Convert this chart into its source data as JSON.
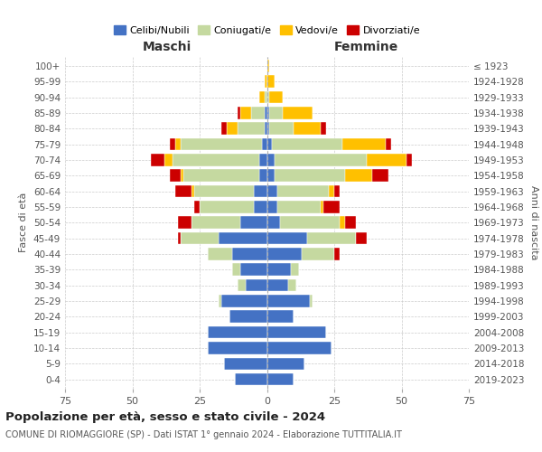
{
  "age_groups": [
    "0-4",
    "5-9",
    "10-14",
    "15-19",
    "20-24",
    "25-29",
    "30-34",
    "35-39",
    "40-44",
    "45-49",
    "50-54",
    "55-59",
    "60-64",
    "65-69",
    "70-74",
    "75-79",
    "80-84",
    "85-89",
    "90-94",
    "95-99",
    "100+"
  ],
  "birth_years": [
    "2019-2023",
    "2014-2018",
    "2009-2013",
    "2004-2008",
    "1999-2003",
    "1994-1998",
    "1989-1993",
    "1984-1988",
    "1979-1983",
    "1974-1978",
    "1969-1973",
    "1964-1968",
    "1959-1963",
    "1954-1958",
    "1949-1953",
    "1944-1948",
    "1939-1943",
    "1934-1938",
    "1929-1933",
    "1924-1928",
    "≤ 1923"
  ],
  "male": {
    "celibi": [
      12,
      16,
      22,
      22,
      14,
      17,
      8,
      10,
      13,
      18,
      10,
      5,
      5,
      3,
      3,
      2,
      1,
      1,
      0,
      0,
      0
    ],
    "coniugati": [
      0,
      0,
      0,
      0,
      0,
      1,
      3,
      3,
      9,
      14,
      18,
      20,
      22,
      28,
      32,
      30,
      10,
      5,
      1,
      0,
      0
    ],
    "vedovi": [
      0,
      0,
      0,
      0,
      0,
      0,
      0,
      0,
      0,
      0,
      0,
      0,
      1,
      1,
      3,
      2,
      4,
      4,
      2,
      1,
      0
    ],
    "divorziati": [
      0,
      0,
      0,
      0,
      0,
      0,
      0,
      0,
      0,
      1,
      5,
      2,
      6,
      4,
      5,
      2,
      2,
      1,
      0,
      0,
      0
    ]
  },
  "female": {
    "nubili": [
      10,
      14,
      24,
      22,
      10,
      16,
      8,
      9,
      13,
      15,
      5,
      4,
      4,
      3,
      3,
      2,
      1,
      1,
      0,
      0,
      0
    ],
    "coniugate": [
      0,
      0,
      0,
      0,
      0,
      1,
      3,
      3,
      12,
      18,
      22,
      16,
      19,
      26,
      34,
      26,
      9,
      5,
      1,
      0,
      0
    ],
    "vedove": [
      0,
      0,
      0,
      0,
      0,
      0,
      0,
      0,
      0,
      0,
      2,
      1,
      2,
      10,
      15,
      16,
      10,
      11,
      5,
      3,
      1
    ],
    "divorziate": [
      0,
      0,
      0,
      0,
      0,
      0,
      0,
      0,
      2,
      4,
      4,
      6,
      2,
      6,
      2,
      2,
      2,
      0,
      0,
      0,
      0
    ]
  },
  "colors": {
    "celibi": "#4472c4",
    "coniugati": "#c5d9a0",
    "vedovi": "#ffc000",
    "divorziati": "#cc0000"
  },
  "xlim": 75,
  "title": "Popolazione per età, sesso e stato civile - 2024",
  "subtitle": "COMUNE DI RIOMAGGIORE (SP) - Dati ISTAT 1° gennaio 2024 - Elaborazione TUTTITALIA.IT",
  "ylabel_left": "Fasce di età",
  "ylabel_right": "Anni di nascita",
  "xlabel_left": "Maschi",
  "xlabel_right": "Femmine",
  "legend_labels": [
    "Celibi/Nubili",
    "Coniugati/e",
    "Vedovi/e",
    "Divorziati/e"
  ],
  "bg_color": "#ffffff",
  "grid_color": "#cccccc"
}
